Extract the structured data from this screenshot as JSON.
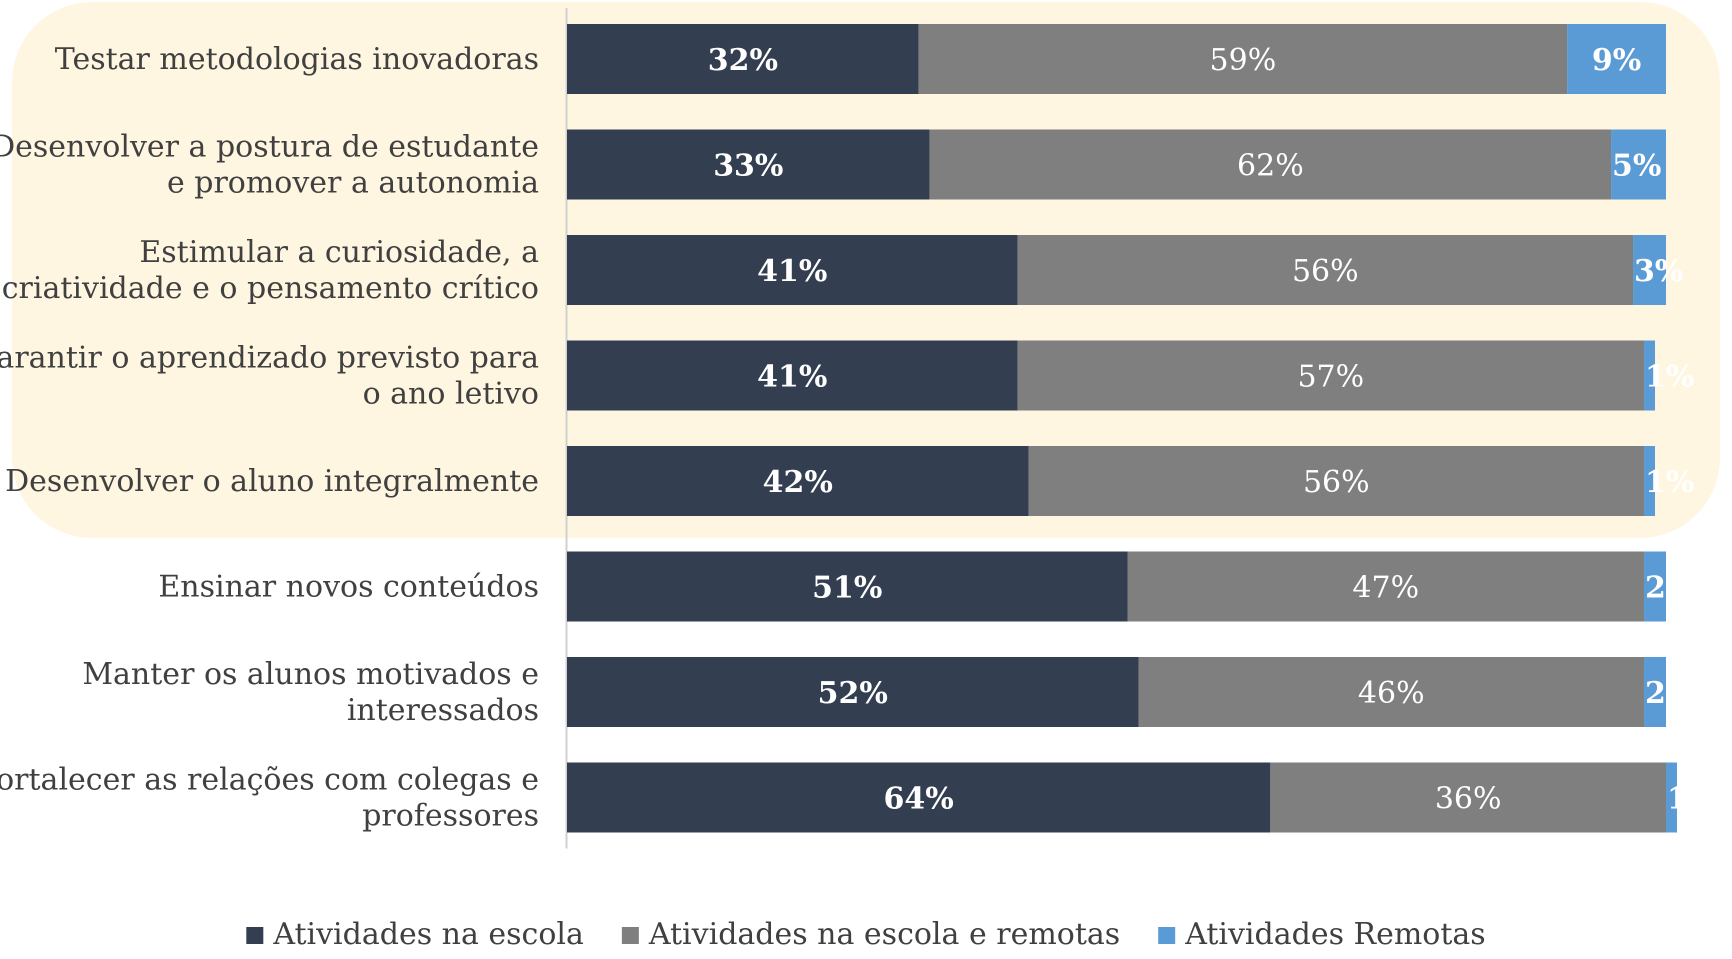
{
  "chart_data": {
    "type": "bar",
    "orientation": "horizontal",
    "stacked": true,
    "normalized_percent": true,
    "categories": [
      "Testar metodologias inovadoras",
      "Desenvolver a postura de estudante e promover a autonomia",
      "Estimular a curiosidade, a criatividade e o pensamento crítico",
      "Garantir o aprendizado previsto para o ano letivo",
      "Desenvolver o aluno integralmente",
      "Ensinar novos conteúdos",
      "Manter os alunos motivados e interessados",
      "Fortalecer as relações com colegas e professores"
    ],
    "category_lines": [
      [
        "Testar metodologias inovadoras"
      ],
      [
        "Desenvolver a postura de estudante",
        "e promover a autonomia"
      ],
      [
        "Estimular a curiosidade, a",
        "criatividade e o pensamento crítico"
      ],
      [
        "Garantir o aprendizado previsto para",
        "o ano letivo"
      ],
      [
        "Desenvolver o aluno integralmente"
      ],
      [
        "Ensinar novos conteúdos"
      ],
      [
        "Manter os alunos motivados e",
        "interessados"
      ],
      [
        "Fortalecer as relações com colegas e",
        "professores"
      ]
    ],
    "series": [
      {
        "name": "Atividades na escola",
        "color": "#333f50",
        "label_color": "#ffffff",
        "label_bold": true,
        "values": [
          32,
          33,
          41,
          41,
          42,
          51,
          52,
          64
        ]
      },
      {
        "name": "Atividades na escola e remotas",
        "color": "#7f7f7f",
        "label_color": "#ffffff",
        "label_bold": false,
        "values": [
          59,
          62,
          56,
          57,
          56,
          47,
          46,
          36
        ]
      },
      {
        "name": "Atividades Remotas",
        "color": "#5b9bd5",
        "label_color": "#ffffff",
        "label_bold": true,
        "values": [
          9,
          5,
          3,
          1,
          1,
          2,
          2,
          1
        ]
      }
    ],
    "value_suffix": "%",
    "xlim": [
      0,
      100
    ],
    "highlight": {
      "color": "#fef6e0",
      "categories": [
        0,
        1,
        2,
        3,
        4
      ]
    },
    "legend": {
      "position": "bottom"
    },
    "grid": false,
    "title": "",
    "xlabel": "",
    "ylabel": ""
  }
}
